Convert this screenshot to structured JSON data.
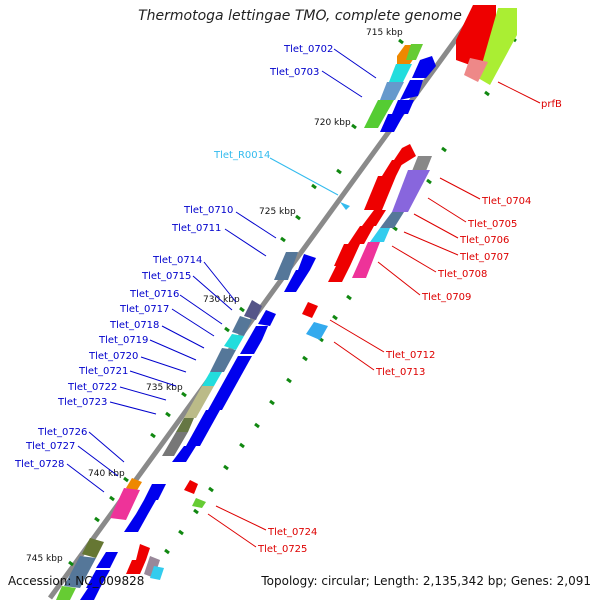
{
  "title": "Thermotoga lettingae TMO, complete genome",
  "footer": {
    "accession": "Accession: NC_009828",
    "summary": "Topology: circular; Length: 2,135,342 bp; Genes: 2,091"
  },
  "kbp_marks": [
    "715 kbp",
    "720 kbp",
    "725 kbp",
    "730 kbp",
    "735 kbp",
    "740 kbp",
    "745 kbp"
  ],
  "left_labels": [
    {
      "text": "Tlet_0702",
      "color": "#0000cc"
    },
    {
      "text": "Tlet_0703",
      "color": "#0000cc"
    },
    {
      "text": "Tlet_R0014",
      "color": "#33bbee"
    },
    {
      "text": "Tlet_0710",
      "color": "#0000cc"
    },
    {
      "text": "Tlet_0711",
      "color": "#0000cc"
    },
    {
      "text": "Tlet_0714",
      "color": "#0000cc"
    },
    {
      "text": "Tlet_0715",
      "color": "#0000cc"
    },
    {
      "text": "Tlet_0716",
      "color": "#0000cc"
    },
    {
      "text": "Tlet_0717",
      "color": "#0000cc"
    },
    {
      "text": "Tlet_0718",
      "color": "#0000cc"
    },
    {
      "text": "Tlet_0719",
      "color": "#0000cc"
    },
    {
      "text": "Tlet_0720",
      "color": "#0000cc"
    },
    {
      "text": "Tlet_0721",
      "color": "#0000cc"
    },
    {
      "text": "Tlet_0722",
      "color": "#0000cc"
    },
    {
      "text": "Tlet_0723",
      "color": "#0000cc"
    },
    {
      "text": "Tlet_0726",
      "color": "#0000cc"
    },
    {
      "text": "Tlet_0727",
      "color": "#0000cc"
    },
    {
      "text": "Tlet_0728",
      "color": "#0000cc"
    }
  ],
  "right_labels": [
    {
      "text": "prfB",
      "color": "#dd0000"
    },
    {
      "text": "Tlet_0704",
      "color": "#dd0000"
    },
    {
      "text": "Tlet_0705",
      "color": "#dd0000"
    },
    {
      "text": "Tlet_0706",
      "color": "#dd0000"
    },
    {
      "text": "Tlet_0707",
      "color": "#dd0000"
    },
    {
      "text": "Tlet_0708",
      "color": "#dd0000"
    },
    {
      "text": "Tlet_0709",
      "color": "#dd0000"
    },
    {
      "text": "Tlet_0712",
      "color": "#dd0000"
    },
    {
      "text": "Tlet_0713",
      "color": "#dd0000"
    },
    {
      "text": "Tlet_0724",
      "color": "#dd0000"
    },
    {
      "text": "Tlet_0725",
      "color": "#dd0000"
    }
  ],
  "colors": {
    "backbone": "#8a8a8a",
    "forward_strand": "#0000ee",
    "reverse_strand": "#ee0000",
    "tick": "#118811"
  }
}
